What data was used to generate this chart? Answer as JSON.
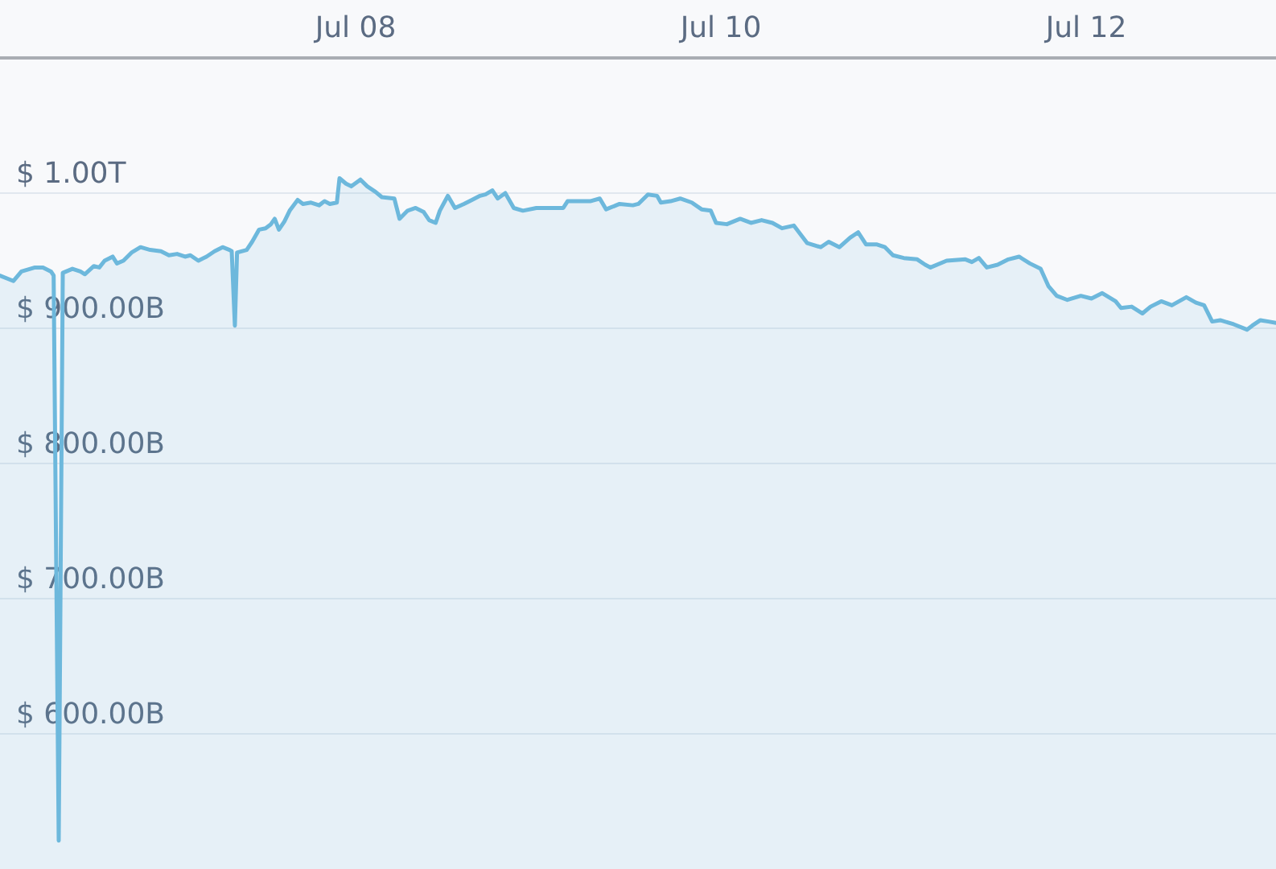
{
  "chart_data": {
    "type": "area",
    "color": "#6db8dc",
    "x": [
      "--07-06T01:16",
      "--07-06T03:02",
      "--07-06T04:05",
      "--07-06T05:52",
      "--07-06T06:55",
      "--07-06T07:58",
      "--07-06T08:19",
      "--07-06T08:59",
      "--07-06T09:31",
      "--07-06T10:47",
      "--07-06T11:50",
      "--07-06T12:25",
      "--07-06T13:36",
      "--07-06T14:19",
      "--07-06T15:01",
      "--07-06T16:04",
      "--07-06T16:38",
      "--07-06T17:29",
      "--07-06T18:33",
      "--07-06T19:44",
      "--07-06T21:00",
      "--07-06T22:25",
      "--07-06T23:28",
      "--07-07T00:32",
      "--07-07T01:35",
      "--07-07T02:17",
      "--07-07T03:20",
      "--07-07T04:24",
      "--07-07T05:28",
      "--07-07T06:31",
      "--07-07T07:26",
      "--07-07T07:43",
      "--07-07T08:08",
      "--07-07T08:25",
      "--07-07T09:41",
      "--07-07T10:24",
      "--07-07T11:19",
      "--07-07T12:10",
      "--07-07T12:52",
      "--07-07T13:22",
      "--07-07T13:55",
      "--07-07T14:38",
      "--07-07T15:20",
      "--07-07T16:23",
      "--07-07T17:05",
      "--07-07T18:08",
      "--07-07T19:12",
      "--07-07T19:55",
      "--07-07T20:37",
      "--07-07T21:32",
      "--07-07T21:53",
      "--07-07T22:44",
      "--07-07T23:26",
      "--07-08T00:38",
      "--07-08T01:32",
      "--07-08T02:36",
      "--07-08T03:27",
      "--07-08T05:05",
      "--07-08T05:46",
      "--07-08T06:50",
      "--07-08T07:53",
      "--07-08T08:57",
      "--07-08T09:40",
      "--07-08T10:31",
      "--07-08T11:04",
      "--07-08T12:07",
      "--07-08T13:03",
      "--07-08T14:14",
      "--07-08T15:17",
      "--07-08T16:21",
      "--07-08T17:04",
      "--07-08T17:58",
      "--07-08T18:40",
      "--07-08T19:40",
      "--07-08T20:47",
      "--07-08T21:59",
      "--07-08T23:45",
      "--07-09T01:10",
      "--07-09T03:17",
      "--07-09T03:51",
      "--07-09T05:23",
      "--07-09T06:49",
      "--07-09T08:05",
      "--07-09T08:55",
      "--07-09T10:41",
      "--07-09T12:26",
      "--07-09T13:09",
      "--07-09T14:25",
      "--07-09T15:37",
      "--07-09T16:07",
      "--07-09T17:23",
      "--07-09T18:39",
      "--07-09T20:11",
      "--07-09T21:28",
      "--07-09T22:40",
      "--07-09T23:22",
      "--07-10T00:47",
      "--07-10T02:32",
      "--07-10T03:57",
      "--07-10T05:21",
      "--07-10T06:46",
      "--07-10T08:02",
      "--07-10T09:35",
      "--07-10T11:21",
      "--07-10T13:07",
      "--07-10T14:10",
      "--07-10T15:35",
      "--07-10T16:59",
      "--07-10T18:02",
      "--07-10T19:05",
      "--07-10T20:31",
      "--07-10T21:34",
      "--07-10T22:37",
      "--07-11T00:02",
      "--07-11T01:48",
      "--07-11T02:51",
      "--07-11T03:33",
      "--07-11T05:40",
      "--07-11T08:08",
      "--07-11T08:59",
      "--07-11T09:54",
      "--07-11T10:57",
      "--07-11T12:22",
      "--07-11T13:47",
      "--07-11T15:11",
      "--07-11T16:36",
      "--07-11T18:01",
      "--07-11T19:04",
      "--07-11T20:08",
      "--07-11T21:32",
      "--07-11T23:18",
      "--07-12T00:42",
      "--07-12T02:07",
      "--07-12T03:52",
      "--07-12T04:35",
      "--07-12T05:59",
      "--07-12T07:24",
      "--07-12T08:28",
      "--07-12T09:52",
      "--07-12T11:16",
      "--07-12T13:10",
      "--07-12T14:26",
      "--07-12T15:30",
      "--07-12T16:34",
      "--07-12T17:37",
      "--07-12T19:23",
      "--07-12T21:08",
      "--07-12T21:50",
      "--07-12T22:54",
      "--07-12T23:58",
      "--07-13T00:57"
    ],
    "values": [
      939000000000,
      935000000000,
      942000000000,
      945000000000,
      945000000000,
      942000000000,
      939000000000,
      521000000000,
      941000000000,
      944000000000,
      942000000000,
      940000000000,
      946000000000,
      945000000000,
      950000000000,
      953000000000,
      948000000000,
      950000000000,
      956000000000,
      960000000000,
      958000000000,
      957000000000,
      954000000000,
      955000000000,
      953000000000,
      954000000000,
      950000000000,
      953000000000,
      957000000000,
      960000000000,
      958000000000,
      957000000000,
      902000000000,
      956000000000,
      958000000000,
      964000000000,
      973000000000,
      974000000000,
      977000000000,
      981000000000,
      973000000000,
      979000000000,
      987000000000,
      995000000000,
      992000000000,
      993000000000,
      991000000000,
      994000000000,
      992000000000,
      993000000000,
      1011000000000,
      1007000000000,
      1005000000000,
      1010000000000,
      1005000000000,
      1001000000000,
      997000000000,
      996000000000,
      981000000000,
      987000000000,
      989000000000,
      986000000000,
      980000000000,
      978000000000,
      987000000000,
      998000000000,
      989000000000,
      992000000000,
      995000000000,
      998000000000,
      999000000000,
      1002000000000,
      996000000000,
      1000000000000,
      989000000000,
      987000000000,
      989000000000,
      989000000000,
      989000000000,
      994000000000,
      994000000000,
      994000000000,
      996000000000,
      988000000000,
      992000000000,
      991000000000,
      992000000000,
      999000000000,
      998000000000,
      993000000000,
      994000000000,
      996000000000,
      993000000000,
      988000000000,
      987000000000,
      978000000000,
      977000000000,
      981000000000,
      978000000000,
      980000000000,
      978000000000,
      974000000000,
      976000000000,
      963000000000,
      960000000000,
      964000000000,
      960000000000,
      967000000000,
      971000000000,
      962000000000,
      962000000000,
      960000000000,
      954000000000,
      952000000000,
      951000000000,
      947000000000,
      945000000000,
      950000000000,
      951000000000,
      949000000000,
      952000000000,
      945000000000,
      947000000000,
      951000000000,
      953000000000,
      948000000000,
      944000000000,
      931000000000,
      924000000000,
      921000000000,
      924000000000,
      922000000000,
      926000000000,
      920000000000,
      915000000000,
      916000000000,
      911000000000,
      916000000000,
      920000000000,
      917000000000,
      923000000000,
      919000000000,
      917000000000,
      905000000000,
      906000000000,
      903000000000,
      899000000000,
      902000000000,
      906000000000,
      905000000000,
      904000000000
    ],
    "xlim": [
      "--07-06T01:16",
      "--07-13T00:57"
    ],
    "xticks": [
      {
        "value": "--07-08",
        "label": "Jul 08"
      },
      {
        "value": "--07-10",
        "label": "Jul 10"
      },
      {
        "value": "--07-12",
        "label": "Jul 12"
      }
    ],
    "ylim": [
      500000000000,
      1100000000000
    ],
    "yticks": [
      {
        "value": 600000000000,
        "label": "$ 600.00B"
      },
      {
        "value": 700000000000,
        "label": "$ 700.00B"
      },
      {
        "value": 800000000000,
        "label": "$ 800.00B"
      },
      {
        "value": 900000000000,
        "label": "$ 900.00B"
      },
      {
        "value": 1000000000000,
        "label": "$ 1.00T"
      }
    ],
    "grid": "y"
  }
}
